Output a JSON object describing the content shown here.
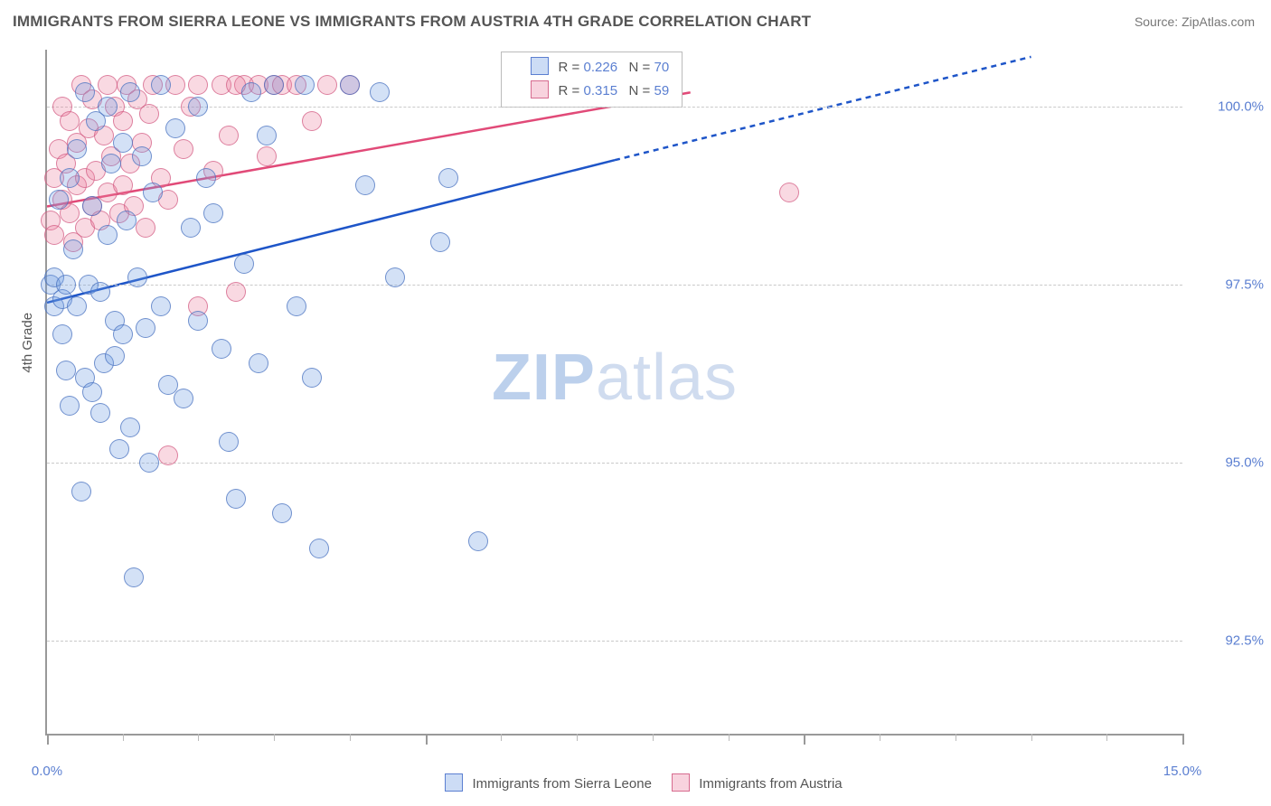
{
  "title": "IMMIGRANTS FROM SIERRA LEONE VS IMMIGRANTS FROM AUSTRIA 4TH GRADE CORRELATION CHART",
  "source": "Source: ZipAtlas.com",
  "ylabel": "4th Grade",
  "watermark": {
    "bold": "ZIP",
    "rest": "atlas"
  },
  "legend": {
    "series1": "Immigrants from Sierra Leone",
    "series2": "Immigrants from Austria"
  },
  "stats": {
    "s1": {
      "r": "0.226",
      "n": "70"
    },
    "s2": {
      "r": "0.315",
      "n": "59"
    }
  },
  "chart": {
    "type": "scatter",
    "background_color": "#ffffff",
    "grid_color": "#c9c9c9",
    "axis_color": "#999999",
    "label_color": "#5b7fd1",
    "text_color": "#555555",
    "xlim": [
      0,
      15
    ],
    "ylim": [
      91.2,
      100.8
    ],
    "x_major_step": 5,
    "x_minor_step": 1,
    "y_grid": [
      92.5,
      95.0,
      97.5,
      100.0
    ],
    "y_tick_labels": [
      "92.5%",
      "95.0%",
      "97.5%",
      "100.0%"
    ],
    "x_tick_labels": {
      "0": "0.0%",
      "15": "15.0%"
    },
    "marker_radius": 10,
    "trend_line_width": 2.5,
    "series": {
      "blue": {
        "color_fill": "rgba(110,155,225,.30)",
        "color_stroke": "#5b7fd1",
        "trend_color": "#1e55c8",
        "trend": {
          "x1": 0,
          "y1": 97.25,
          "x2": 7.5,
          "y2": 99.25,
          "x_extend": 13.0,
          "y_extend": 100.7
        },
        "points": [
          [
            0.05,
            97.5
          ],
          [
            0.1,
            97.2
          ],
          [
            0.1,
            97.6
          ],
          [
            0.15,
            98.7
          ],
          [
            0.2,
            97.3
          ],
          [
            0.2,
            96.8
          ],
          [
            0.25,
            96.3
          ],
          [
            0.25,
            97.5
          ],
          [
            0.3,
            99.0
          ],
          [
            0.3,
            95.8
          ],
          [
            0.35,
            98.0
          ],
          [
            0.4,
            97.2
          ],
          [
            0.4,
            99.4
          ],
          [
            0.45,
            94.6
          ],
          [
            0.5,
            100.2
          ],
          [
            0.5,
            96.2
          ],
          [
            0.55,
            97.5
          ],
          [
            0.6,
            98.6
          ],
          [
            0.6,
            96.0
          ],
          [
            0.65,
            99.8
          ],
          [
            0.7,
            97.4
          ],
          [
            0.7,
            95.7
          ],
          [
            0.75,
            96.4
          ],
          [
            0.8,
            100.0
          ],
          [
            0.8,
            98.2
          ],
          [
            0.85,
            99.2
          ],
          [
            0.9,
            97.0
          ],
          [
            0.9,
            96.5
          ],
          [
            0.95,
            95.2
          ],
          [
            1.0,
            99.5
          ],
          [
            1.0,
            96.8
          ],
          [
            1.05,
            98.4
          ],
          [
            1.1,
            95.5
          ],
          [
            1.1,
            100.2
          ],
          [
            1.15,
            93.4
          ],
          [
            1.2,
            97.6
          ],
          [
            1.25,
            99.3
          ],
          [
            1.3,
            96.9
          ],
          [
            1.35,
            95.0
          ],
          [
            1.4,
            98.8
          ],
          [
            1.5,
            97.2
          ],
          [
            1.5,
            100.3
          ],
          [
            1.6,
            96.1
          ],
          [
            1.7,
            99.7
          ],
          [
            1.8,
            95.9
          ],
          [
            1.9,
            98.3
          ],
          [
            2.0,
            100.0
          ],
          [
            2.0,
            97.0
          ],
          [
            2.1,
            99.0
          ],
          [
            2.2,
            98.5
          ],
          [
            2.3,
            96.6
          ],
          [
            2.4,
            95.3
          ],
          [
            2.5,
            94.5
          ],
          [
            2.6,
            97.8
          ],
          [
            2.7,
            100.2
          ],
          [
            2.8,
            96.4
          ],
          [
            2.9,
            99.6
          ],
          [
            3.0,
            100.3
          ],
          [
            3.1,
            94.3
          ],
          [
            3.3,
            97.2
          ],
          [
            3.4,
            100.3
          ],
          [
            3.5,
            96.2
          ],
          [
            3.6,
            93.8
          ],
          [
            4.0,
            100.3
          ],
          [
            4.2,
            98.9
          ],
          [
            4.4,
            100.2
          ],
          [
            4.6,
            97.6
          ],
          [
            5.2,
            98.1
          ],
          [
            5.7,
            93.9
          ],
          [
            5.3,
            99.0
          ]
        ]
      },
      "pink": {
        "color_fill": "rgba(235,130,160,.30)",
        "color_stroke": "#d76b8f",
        "trend_color": "#e14a78",
        "trend": {
          "x1": 0,
          "y1": 98.6,
          "x2": 8.5,
          "y2": 100.2
        },
        "points": [
          [
            0.05,
            98.4
          ],
          [
            0.1,
            99.0
          ],
          [
            0.1,
            98.2
          ],
          [
            0.15,
            99.4
          ],
          [
            0.2,
            98.7
          ],
          [
            0.2,
            100.0
          ],
          [
            0.25,
            99.2
          ],
          [
            0.3,
            98.5
          ],
          [
            0.3,
            99.8
          ],
          [
            0.35,
            98.1
          ],
          [
            0.4,
            99.5
          ],
          [
            0.4,
            98.9
          ],
          [
            0.45,
            100.3
          ],
          [
            0.5,
            99.0
          ],
          [
            0.5,
            98.3
          ],
          [
            0.55,
            99.7
          ],
          [
            0.6,
            98.6
          ],
          [
            0.6,
            100.1
          ],
          [
            0.65,
            99.1
          ],
          [
            0.7,
            98.4
          ],
          [
            0.75,
            99.6
          ],
          [
            0.8,
            100.3
          ],
          [
            0.8,
            98.8
          ],
          [
            0.85,
            99.3
          ],
          [
            0.9,
            100.0
          ],
          [
            0.95,
            98.5
          ],
          [
            1.0,
            99.8
          ],
          [
            1.0,
            98.9
          ],
          [
            1.05,
            100.3
          ],
          [
            1.1,
            99.2
          ],
          [
            1.15,
            98.6
          ],
          [
            1.2,
            100.1
          ],
          [
            1.25,
            99.5
          ],
          [
            1.3,
            98.3
          ],
          [
            1.35,
            99.9
          ],
          [
            1.4,
            100.3
          ],
          [
            1.5,
            99.0
          ],
          [
            1.6,
            98.7
          ],
          [
            1.7,
            100.3
          ],
          [
            1.8,
            99.4
          ],
          [
            1.9,
            100.0
          ],
          [
            2.0,
            100.3
          ],
          [
            2.0,
            97.2
          ],
          [
            2.2,
            99.1
          ],
          [
            2.3,
            100.3
          ],
          [
            2.4,
            99.6
          ],
          [
            2.5,
            97.4
          ],
          [
            2.6,
            100.3
          ],
          [
            2.8,
            100.3
          ],
          [
            2.9,
            99.3
          ],
          [
            3.0,
            100.3
          ],
          [
            3.1,
            100.3
          ],
          [
            3.3,
            100.3
          ],
          [
            3.5,
            99.8
          ],
          [
            3.7,
            100.3
          ],
          [
            1.6,
            95.1
          ],
          [
            2.5,
            100.3
          ],
          [
            4.0,
            100.3
          ],
          [
            9.8,
            98.8
          ]
        ]
      }
    }
  }
}
